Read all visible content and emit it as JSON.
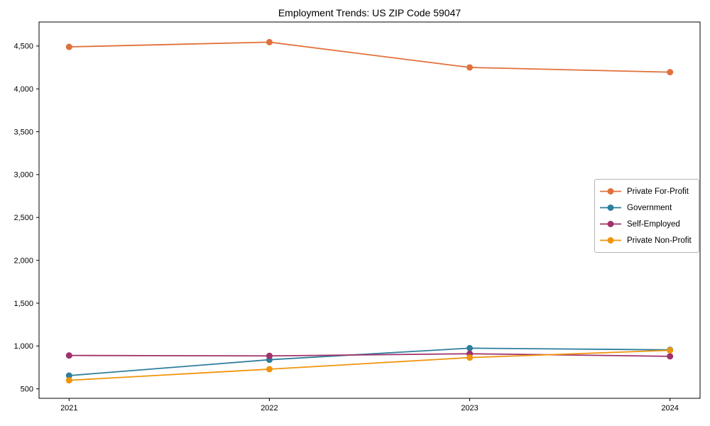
{
  "figure": {
    "title": "Employment Trends: US ZIP Code 59047"
  },
  "chart_data": {
    "type": "line",
    "title": "Employment Trends: US ZIP Code 59047",
    "xlabel": "",
    "ylabel": "",
    "x": [
      2021,
      2022,
      2023,
      2024
    ],
    "x_tick_labels": [
      "2021",
      "2022",
      "2023",
      "2024"
    ],
    "series": [
      {
        "name": "Private For-Profit",
        "color": "#e1703b",
        "values": [
          4490,
          4545,
          4250,
          4195
        ]
      },
      {
        "name": "Government",
        "color": "#2e7e9c",
        "values": [
          655,
          840,
          975,
          955
        ]
      },
      {
        "name": "Self-Employed",
        "color": "#a03269",
        "values": [
          890,
          885,
          910,
          880
        ]
      },
      {
        "name": "Private Non-Profit",
        "color": "#f0940c",
        "values": [
          600,
          730,
          865,
          950
        ]
      }
    ],
    "ylim": [
      390,
      4780
    ],
    "xlim": [
      2020.85,
      2024.15
    ],
    "yticks": [
      500,
      1000,
      1500,
      2000,
      2500,
      3000,
      3500,
      4000,
      4500
    ],
    "grid": false,
    "legend_position": "center-right",
    "frame_color": "#000000",
    "background_color": "#ffffff",
    "legend_border_color": "#b4b4b4",
    "marker": "circle",
    "marker_radius": 4.5,
    "line_width": 1.8
  }
}
